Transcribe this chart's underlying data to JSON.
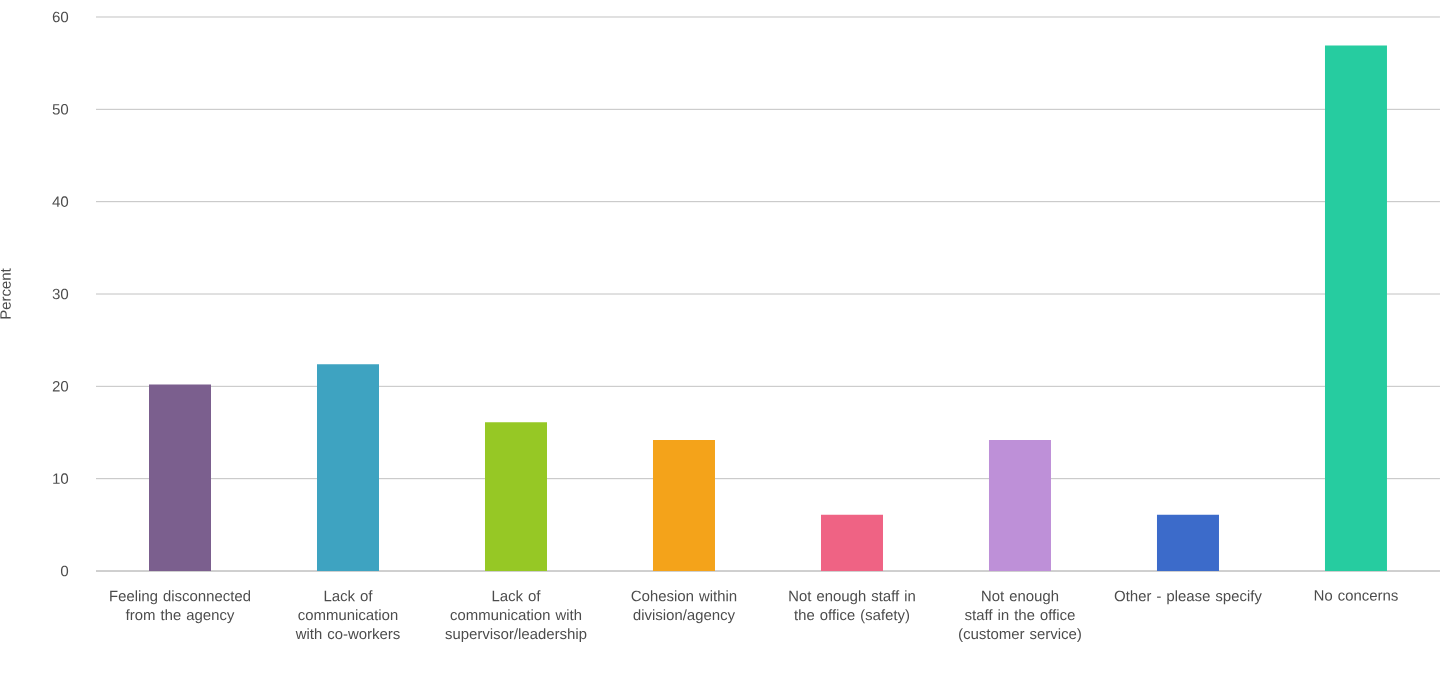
{
  "chart_data": {
    "type": "bar",
    "ylabel": "Percent",
    "categories": [
      "Feeling disconnected from the agency",
      "Lack of communication with co-workers",
      "Lack of communication with supervisor/leadership",
      "Cohesion within division/agency",
      "Not enough staff in the office (safety)",
      "Not enough staff in the office (customer service)",
      "Other - please specify",
      "No concerns"
    ],
    "values": [
      20.2,
      22.4,
      16.1,
      14.2,
      6.1,
      14.2,
      6.1,
      56.9
    ],
    "colors": [
      "#7b5f8e",
      "#3ea3c1",
      "#96c825",
      "#f4a31a",
      "#ef6384",
      "#be90d8",
      "#3c6bca",
      "#26cca0"
    ],
    "ylim": [
      0,
      60
    ],
    "yticks": [
      0,
      10,
      20,
      30,
      40,
      50,
      60
    ],
    "grid": "y"
  }
}
